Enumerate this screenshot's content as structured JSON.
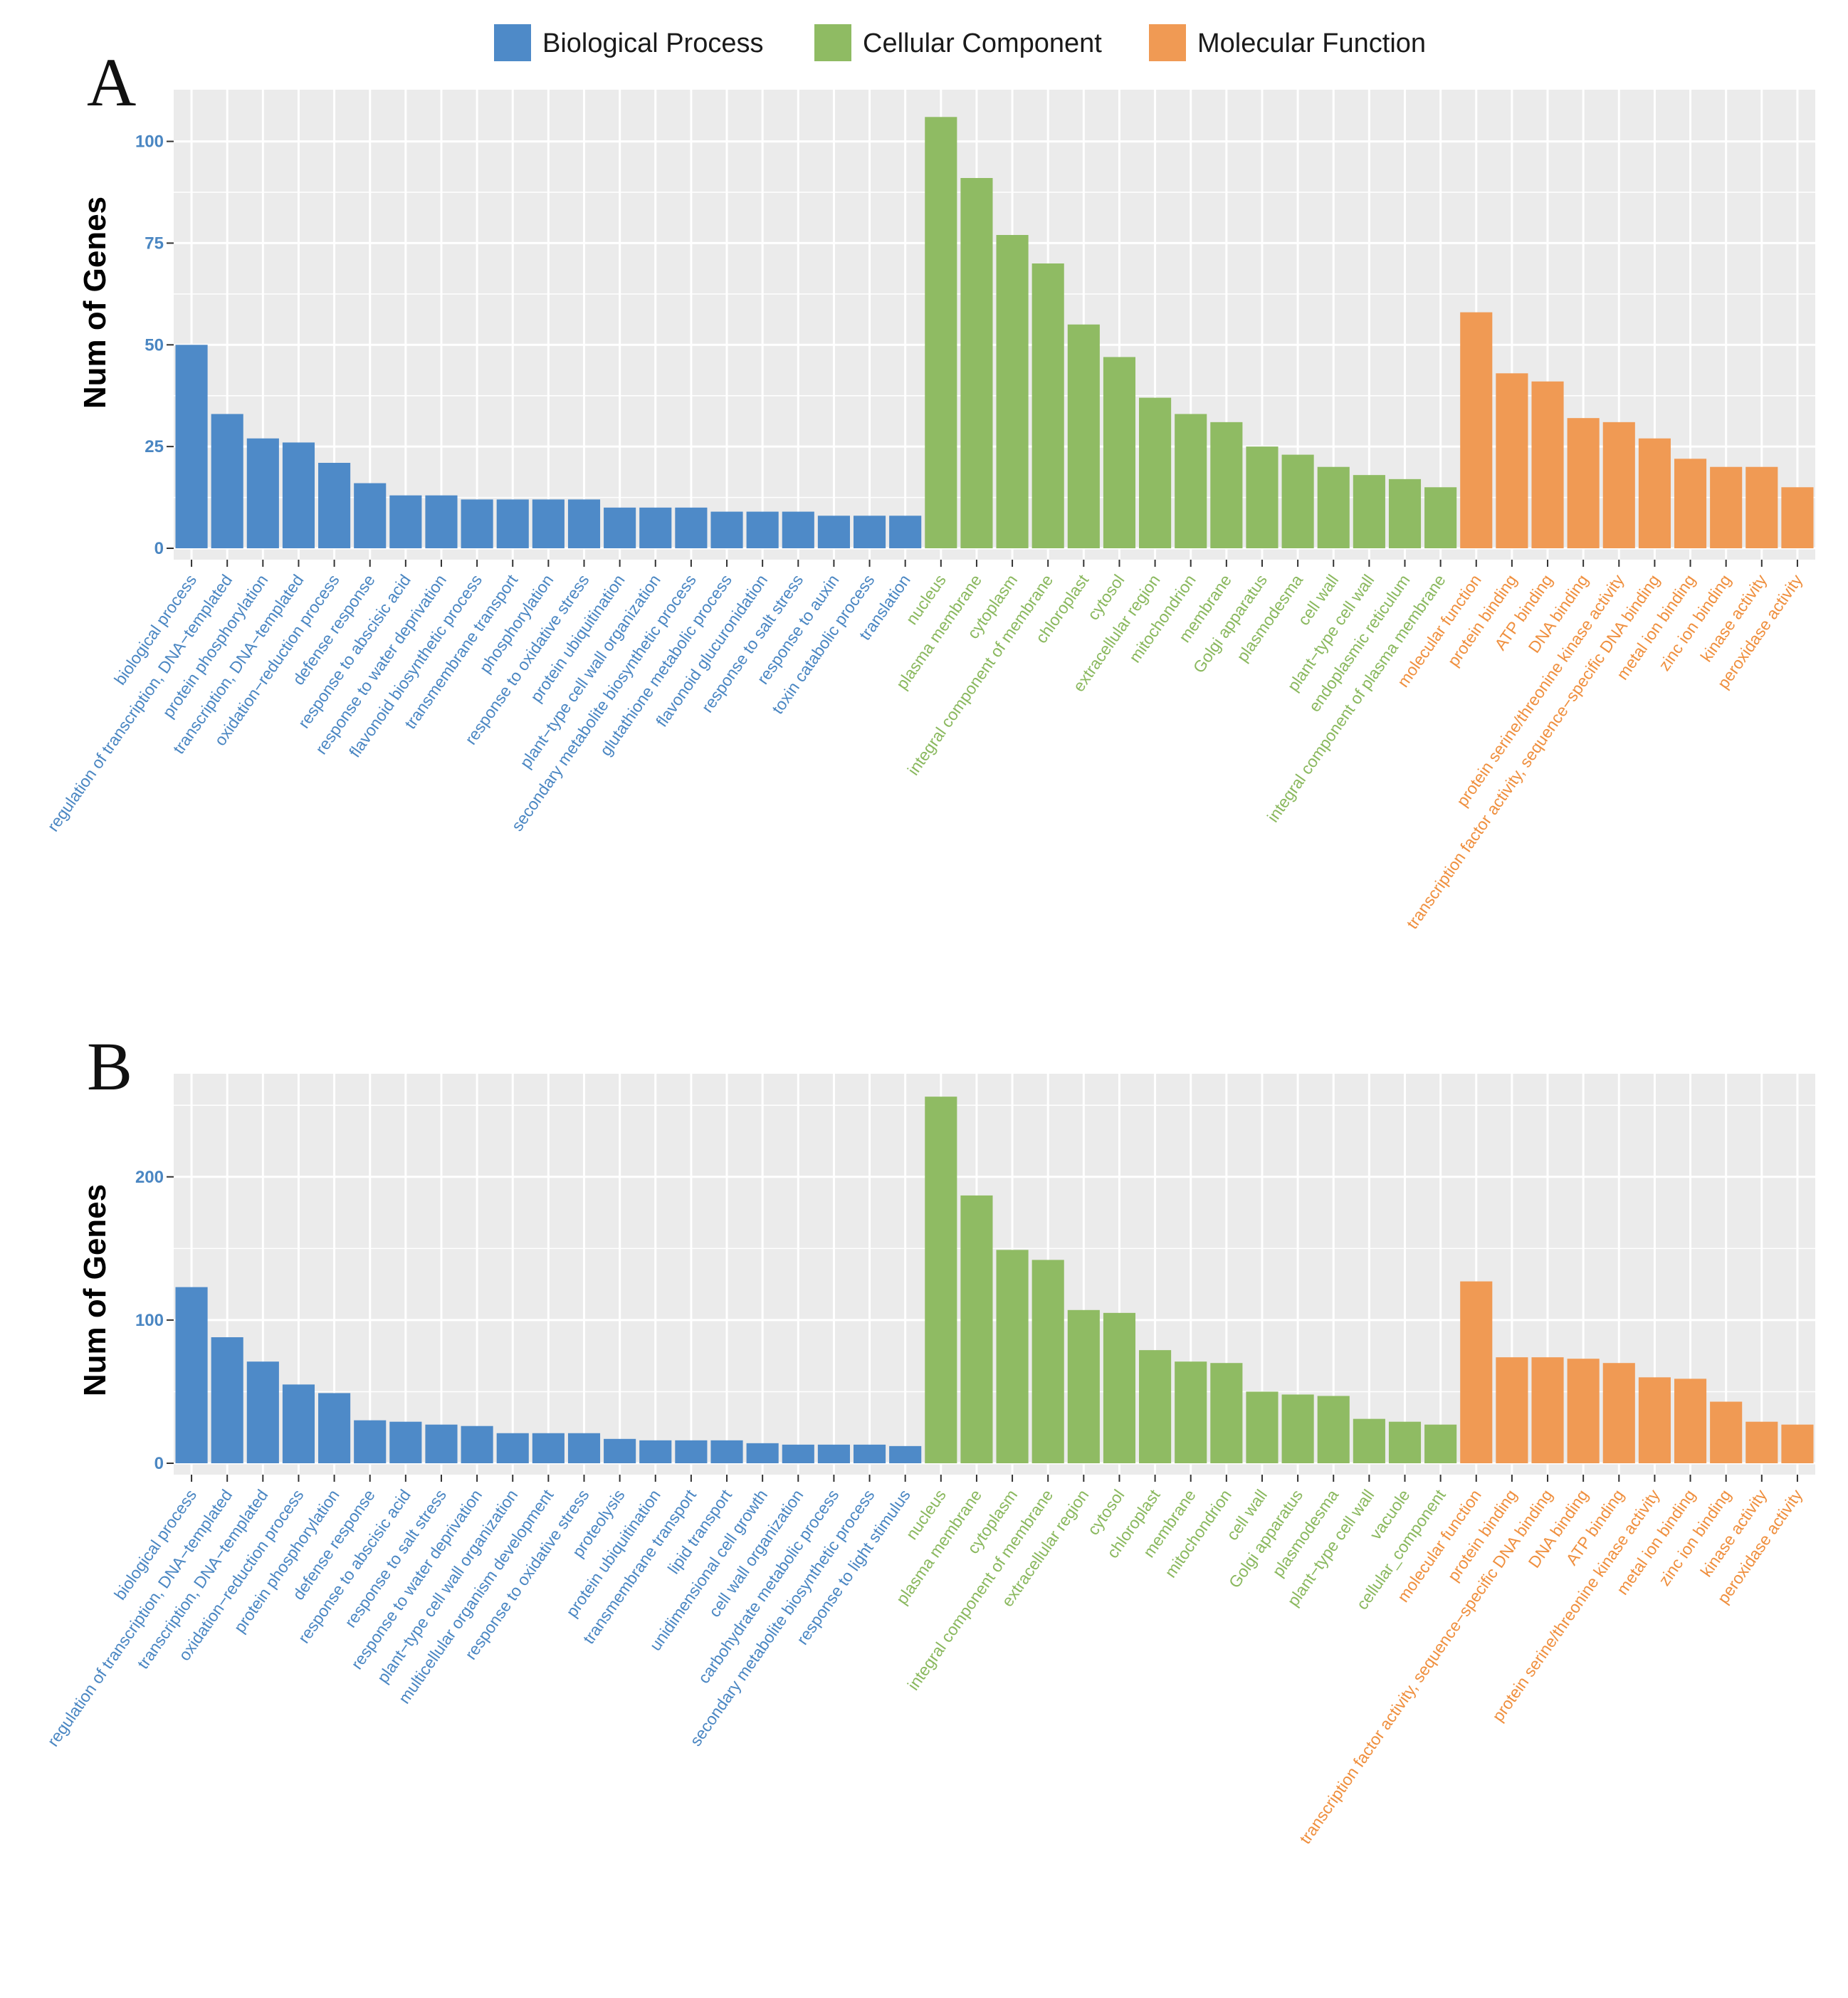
{
  "colors": {
    "panel_bg": "#ebebeb",
    "grid": "#ffffff",
    "bar_colors": {
      "Biological Process": "#4e8ac8",
      "Cellular Component": "#8fbb63",
      "Molecular Function": "#f09a54"
    },
    "label_colors": {
      "Biological Process": "#4a86c2",
      "Cellular Component": "#8ab85e",
      "Molecular Function": "#ef8f3e"
    },
    "tick_label": "#4a86c2"
  },
  "legend": {
    "entries": [
      "Biological Process",
      "Cellular Component",
      "Molecular Function"
    ]
  },
  "chart_data": [
    {
      "type": "bar",
      "panel": "A",
      "ylabel": "Num of Genes",
      "ylim": [
        0,
        112
      ],
      "yticks": [
        0,
        25,
        50,
        75,
        100
      ],
      "series": [
        {
          "name": "Biological Process",
          "categories": [
            "biological process",
            "regulation of transcription, DNA−templated",
            "protein phosphorylation",
            "transcription, DNA−templated",
            "oxidation−reduction process",
            "defense response",
            "response to abscisic acid",
            "response to water deprivation",
            "flavonoid biosynthetic process",
            "transmembrane transport",
            "phosphorylation",
            "response to oxidative stress",
            "protein ubiquitination",
            "plant−type cell wall organization",
            "secondary metabolite biosynthetic process",
            "glutathione metabolic process",
            "flavonoid glucuronidation",
            "response to salt stress",
            "response to auxin",
            "toxin catabolic process",
            "translation"
          ],
          "values": [
            50,
            33,
            27,
            26,
            21,
            16,
            13,
            13,
            12,
            12,
            12,
            12,
            10,
            10,
            10,
            9,
            9,
            9,
            8,
            8,
            8
          ]
        },
        {
          "name": "Cellular Component",
          "categories": [
            "nucleus",
            "plasma membrane",
            "cytoplasm",
            "integral component of membrane",
            "chloroplast",
            "cytosol",
            "extracellular region",
            "mitochondrion",
            "membrane",
            "Golgi apparatus",
            "plasmodesma",
            "cell wall",
            "plant−type cell wall",
            "endoplasmic reticulum",
            "integral component of plasma membrane"
          ],
          "values": [
            106,
            91,
            77,
            70,
            55,
            47,
            37,
            33,
            31,
            25,
            23,
            20,
            18,
            17,
            15
          ]
        },
        {
          "name": "Molecular Function",
          "categories": [
            "molecular function",
            "protein binding",
            "ATP binding",
            "DNA binding",
            "protein serine/threonine kinase activity",
            "transcription factor activity, sequence−specific DNA binding",
            "metal ion binding",
            "zinc ion binding",
            "kinase activity",
            "peroxidase activity"
          ],
          "values": [
            58,
            43,
            41,
            32,
            31,
            27,
            22,
            20,
            20,
            15
          ]
        }
      ]
    },
    {
      "type": "bar",
      "panel": "B",
      "ylabel": "Num of Genes",
      "ylim": [
        0,
        270
      ],
      "yticks": [
        0,
        100,
        200
      ],
      "series": [
        {
          "name": "Biological Process",
          "categories": [
            "biological process",
            "regulation of transcription, DNA−templated",
            "transcription, DNA−templated",
            "oxidation−reduction process",
            "protein phosphorylation",
            "defense response",
            "response to abscisic acid",
            "response to salt stress",
            "response to water deprivation",
            "plant−type cell wall organization",
            "multicellular organism development",
            "response to oxidative stress",
            "proteolysis",
            "protein ubiquitination",
            "transmembrane transport",
            "lipid transport",
            "unidimensional cell growth",
            "cell wall organization",
            "carbohydrate metabolic process",
            "secondary metabolite biosynthetic process",
            "response to light stimulus"
          ],
          "values": [
            123,
            88,
            71,
            55,
            49,
            30,
            29,
            27,
            26,
            21,
            21,
            21,
            17,
            16,
            16,
            16,
            14,
            13,
            13,
            13,
            12
          ]
        },
        {
          "name": "Cellular Component",
          "categories": [
            "nucleus",
            "plasma membrane",
            "cytoplasm",
            "integral component of membrane",
            "extracellular region",
            "cytosol",
            "chloroplast",
            "membrane",
            "mitochondrion",
            "cell wall",
            "Golgi apparatus",
            "plasmodesma",
            "plant−type cell wall",
            "vacuole",
            "cellular_component"
          ],
          "values": [
            256,
            187,
            149,
            142,
            107,
            105,
            79,
            71,
            70,
            50,
            48,
            47,
            31,
            29,
            27
          ]
        },
        {
          "name": "Molecular Function",
          "categories": [
            "molecular function",
            "protein binding",
            "transcription factor activity, sequence−specific DNA binding",
            "DNA binding",
            "ATP binding",
            "protein serine/threonine kinase activity",
            "metal ion binding",
            "zinc ion binding",
            "kinase activity",
            "peroxidase activity"
          ],
          "values": [
            127,
            74,
            74,
            73,
            70,
            60,
            59,
            43,
            29,
            27
          ]
        }
      ]
    }
  ]
}
